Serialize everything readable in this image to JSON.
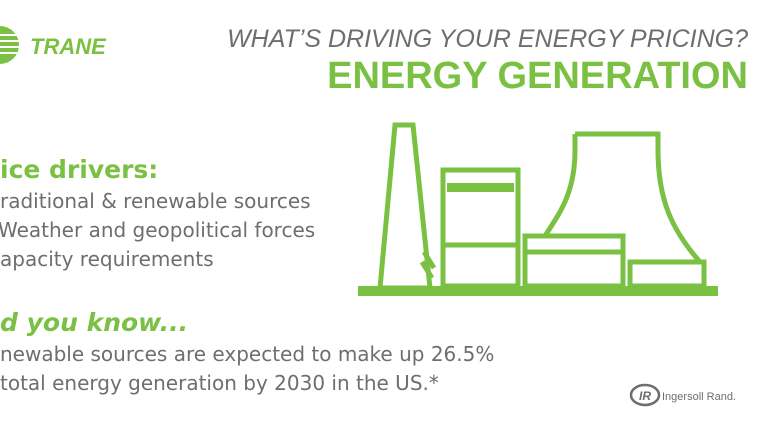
{
  "header": {
    "logo": "TRANE",
    "title": "WHAT’S DRIVING YOUR ENERGY PRICING?",
    "subtitle": "ENERGY GENERATION"
  },
  "drivers": {
    "heading": "ice drivers:",
    "items": [
      "raditional & renewable sources",
      "Weather and geopolitical forces",
      "apacity requirements"
    ]
  },
  "fact": {
    "heading": "d you know...",
    "lines": [
      "newable sources are expected to make up 26.5%",
      "total energy generation by 2030 in the US.*"
    ]
  },
  "footer": {
    "logo_mark": "IR",
    "logo_text": "Ingersoll Rand."
  }
}
